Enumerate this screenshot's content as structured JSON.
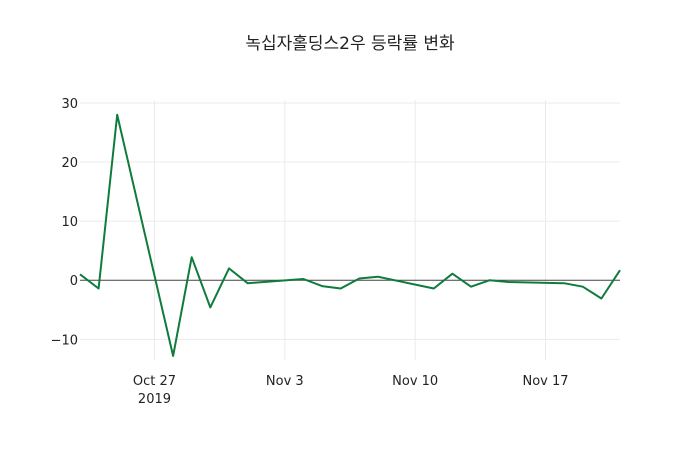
{
  "chart_data": {
    "type": "line",
    "title": "녹십자홀딩스2우 등락률 변화",
    "xlabel": "",
    "ylabel": "",
    "x": [
      "2019-10-23",
      "2019-10-24",
      "2019-10-25",
      "2019-10-28",
      "2019-10-29",
      "2019-10-30",
      "2019-10-31",
      "2019-11-01",
      "2019-11-04",
      "2019-11-05",
      "2019-11-06",
      "2019-11-07",
      "2019-11-08",
      "2019-11-11",
      "2019-11-12",
      "2019-11-13",
      "2019-11-14",
      "2019-11-15",
      "2019-11-18",
      "2019-11-19",
      "2019-11-20",
      "2019-11-21"
    ],
    "series": [
      {
        "name": "등락률",
        "color": "#0f7b3c",
        "values": [
          1.0,
          -1.4,
          28.0,
          -12.8,
          3.9,
          -4.6,
          2.0,
          -0.5,
          0.2,
          -1.0,
          -1.4,
          0.3,
          0.6,
          -1.4,
          1.1,
          -1.1,
          0.0,
          -0.3,
          -0.5,
          -1.1,
          -3.1,
          1.7
        ]
      }
    ],
    "ylim": [
      -13.5,
      30.5
    ],
    "xlim": [
      "2019-10-23",
      "2019-11-21"
    ],
    "y_ticks": [
      30,
      20,
      10,
      0,
      -10
    ],
    "y_tick_labels": [
      "30",
      "20",
      "10",
      "0",
      "−10"
    ],
    "x_ticks": [
      {
        "date": "2019-10-27",
        "label": "Oct 27",
        "sublabel": "2019"
      },
      {
        "date": "2019-11-03",
        "label": "Nov 3",
        "sublabel": ""
      },
      {
        "date": "2019-11-10",
        "label": "Nov 10",
        "sublabel": ""
      },
      {
        "date": "2019-11-17",
        "label": "Nov 17",
        "sublabel": ""
      }
    ],
    "grid": true,
    "legend": "none"
  }
}
